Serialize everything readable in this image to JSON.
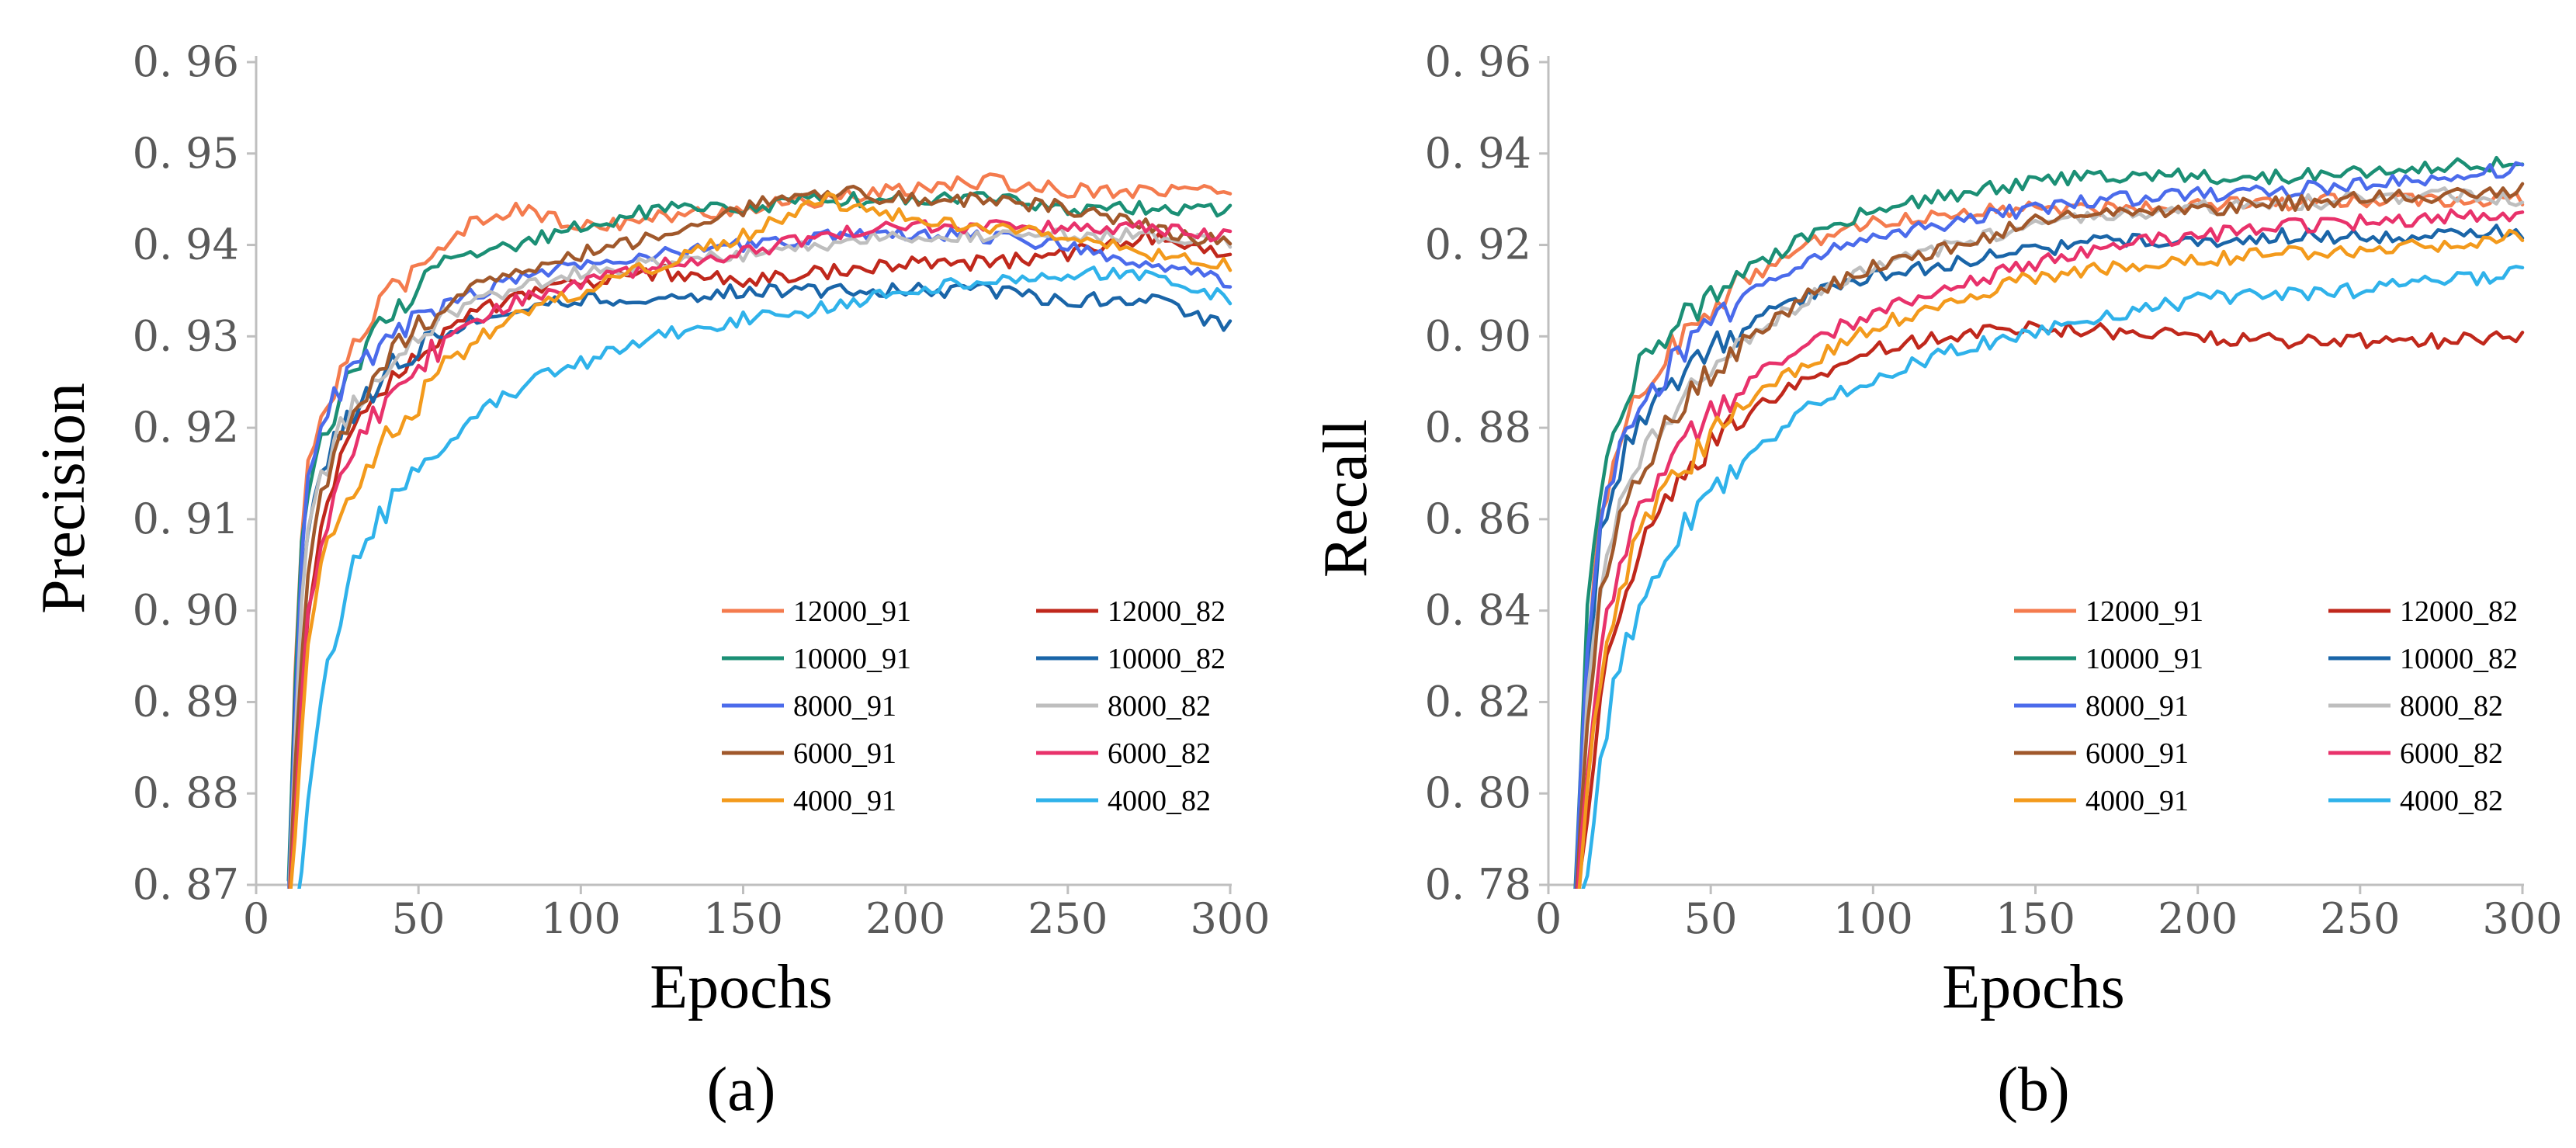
{
  "chart_data": [
    {
      "type": "line",
      "panel_label": "(a)",
      "title": "",
      "xlabel": "Epochs",
      "ylabel": "Precision",
      "xlim": [
        0,
        300
      ],
      "ylim": [
        0.87,
        0.96
      ],
      "xticks": [
        0,
        50,
        100,
        150,
        200,
        250,
        300
      ],
      "yticks": [
        0.87,
        0.88,
        0.89,
        0.9,
        0.91,
        0.92,
        0.93,
        0.94,
        0.95,
        0.96
      ],
      "xtick_labels": [
        "0",
        "50",
        "100",
        "150",
        "200",
        "250",
        "300"
      ],
      "ytick_labels": [
        "0. 87",
        "0. 88",
        "0. 89",
        "0. 90",
        "0. 91",
        "0. 92",
        "0. 93",
        "0. 94",
        "0. 95",
        "0. 96"
      ],
      "grid": false,
      "legend_position": "bottom-right",
      "x": [
        10,
        13,
        16,
        20,
        25,
        30,
        40,
        50,
        60,
        70,
        80,
        90,
        100,
        125,
        150,
        175,
        200,
        225,
        250,
        275,
        300
      ],
      "series": [
        {
          "name": "12000_91",
          "color": "#F47B4E",
          "values": [
            0.868,
            0.905,
            0.915,
            0.921,
            0.925,
            0.929,
            0.934,
            0.938,
            0.941,
            0.943,
            0.944,
            0.943,
            0.942,
            0.943,
            0.944,
            0.945,
            0.946,
            0.947,
            0.946,
            0.946,
            0.946
          ]
        },
        {
          "name": "12000_82",
          "color": "#C0281C",
          "values": [
            0.866,
            0.885,
            0.9,
            0.91,
            0.916,
            0.92,
            0.925,
            0.929,
            0.931,
            0.933,
            0.934,
            0.935,
            0.936,
            0.937,
            0.936,
            0.937,
            0.938,
            0.938,
            0.939,
            0.941,
            0.939
          ]
        },
        {
          "name": "10000_91",
          "color": "#1B8F75",
          "values": [
            0.87,
            0.903,
            0.912,
            0.918,
            0.923,
            0.927,
            0.932,
            0.935,
            0.938,
            0.939,
            0.94,
            0.941,
            0.942,
            0.944,
            0.944,
            0.945,
            0.945,
            0.945,
            0.944,
            0.944,
            0.944
          ]
        },
        {
          "name": "10000_82",
          "color": "#1A65A8",
          "values": [
            0.868,
            0.9,
            0.91,
            0.915,
            0.919,
            0.922,
            0.926,
            0.929,
            0.931,
            0.932,
            0.933,
            0.934,
            0.934,
            0.934,
            0.935,
            0.935,
            0.935,
            0.935,
            0.934,
            0.934,
            0.931
          ]
        },
        {
          "name": "8000_91",
          "color": "#4B6BEB",
          "values": [
            0.868,
            0.9,
            0.915,
            0.921,
            0.924,
            0.926,
            0.929,
            0.932,
            0.934,
            0.935,
            0.936,
            0.937,
            0.938,
            0.939,
            0.94,
            0.941,
            0.941,
            0.941,
            0.94,
            0.938,
            0.936
          ]
        },
        {
          "name": "8000_82",
          "color": "#BEBEBE",
          "values": [
            0.867,
            0.895,
            0.908,
            0.914,
            0.919,
            0.923,
            0.927,
            0.93,
            0.932,
            0.934,
            0.935,
            0.936,
            0.937,
            0.938,
            0.939,
            0.94,
            0.941,
            0.941,
            0.941,
            0.941,
            0.94
          ]
        },
        {
          "name": "6000_91",
          "color": "#A0582B",
          "values": [
            0.866,
            0.89,
            0.905,
            0.913,
            0.918,
            0.922,
            0.927,
            0.931,
            0.934,
            0.936,
            0.937,
            0.938,
            0.939,
            0.941,
            0.944,
            0.946,
            0.945,
            0.945,
            0.944,
            0.942,
            0.94
          ]
        },
        {
          "name": "6000_82",
          "color": "#E8326B",
          "values": [
            0.866,
            0.885,
            0.9,
            0.908,
            0.914,
            0.918,
            0.923,
            0.927,
            0.93,
            0.932,
            0.934,
            0.935,
            0.936,
            0.938,
            0.939,
            0.941,
            0.942,
            0.942,
            0.942,
            0.942,
            0.941
          ]
        },
        {
          "name": "4000_91",
          "color": "#F39A1C",
          "values": [
            0.866,
            0.88,
            0.895,
            0.904,
            0.91,
            0.914,
            0.919,
            0.923,
            0.927,
            0.93,
            0.932,
            0.934,
            0.935,
            0.938,
            0.941,
            0.945,
            0.943,
            0.942,
            0.941,
            0.939,
            0.938
          ]
        },
        {
          "name": "4000_82",
          "color": "#2FB2EA",
          "values": [
            0.86,
            0.868,
            0.88,
            0.89,
            0.898,
            0.905,
            0.911,
            0.915,
            0.919,
            0.922,
            0.924,
            0.926,
            0.927,
            0.93,
            0.932,
            0.933,
            0.935,
            0.936,
            0.937,
            0.937,
            0.934
          ]
        }
      ]
    },
    {
      "type": "line",
      "panel_label": "(b)",
      "title": "",
      "xlabel": "Epochs",
      "ylabel": "Recall",
      "xlim": [
        0,
        300
      ],
      "ylim": [
        0.78,
        0.96
      ],
      "xticks": [
        0,
        50,
        100,
        150,
        200,
        250,
        300
      ],
      "yticks": [
        0.78,
        0.8,
        0.82,
        0.84,
        0.86,
        0.88,
        0.9,
        0.92,
        0.94,
        0.96
      ],
      "xtick_labels": [
        "0",
        "50",
        "100",
        "150",
        "200",
        "250",
        "300"
      ],
      "ytick_labels": [
        "0. 78",
        "0. 80",
        "0. 82",
        "0. 84",
        "0. 86",
        "0. 88",
        "0. 90",
        "0. 92",
        "0. 94",
        "0. 96"
      ],
      "grid": false,
      "legend_position": "bottom-right",
      "x": [
        8,
        12,
        16,
        20,
        25,
        30,
        40,
        50,
        60,
        70,
        80,
        90,
        100,
        125,
        150,
        175,
        200,
        225,
        250,
        275,
        300
      ],
      "series": [
        {
          "name": "12000_91",
          "color": "#F47B4E",
          "values": [
            0.775,
            0.83,
            0.858,
            0.873,
            0.883,
            0.89,
            0.899,
            0.906,
            0.912,
            0.916,
            0.92,
            0.923,
            0.925,
            0.927,
            0.928,
            0.928,
            0.929,
            0.929,
            0.93,
            0.93,
            0.93
          ]
        },
        {
          "name": "12000_82",
          "color": "#C0281C",
          "values": [
            0.77,
            0.795,
            0.82,
            0.835,
            0.848,
            0.858,
            0.868,
            0.876,
            0.882,
            0.887,
            0.891,
            0.894,
            0.897,
            0.9,
            0.902,
            0.901,
            0.9,
            0.899,
            0.899,
            0.899,
            0.9
          ]
        },
        {
          "name": "10000_91",
          "color": "#1B8F75",
          "values": [
            0.778,
            0.84,
            0.866,
            0.88,
            0.889,
            0.895,
            0.903,
            0.909,
            0.914,
            0.918,
            0.922,
            0.925,
            0.928,
            0.931,
            0.934,
            0.935,
            0.935,
            0.935,
            0.936,
            0.937,
            0.938
          ]
        },
        {
          "name": "10000_82",
          "color": "#1A65A8",
          "values": [
            0.776,
            0.83,
            0.855,
            0.868,
            0.877,
            0.883,
            0.891,
            0.897,
            0.902,
            0.906,
            0.909,
            0.911,
            0.913,
            0.916,
            0.919,
            0.921,
            0.921,
            0.922,
            0.922,
            0.922,
            0.923
          ]
        },
        {
          "name": "8000_91",
          "color": "#4B6BEB",
          "values": [
            0.775,
            0.832,
            0.858,
            0.87,
            0.88,
            0.886,
            0.896,
            0.903,
            0.909,
            0.913,
            0.917,
            0.92,
            0.922,
            0.925,
            0.928,
            0.93,
            0.931,
            0.932,
            0.933,
            0.935,
            0.937
          ]
        },
        {
          "name": "8000_82",
          "color": "#BEBEBE",
          "values": [
            0.772,
            0.82,
            0.845,
            0.858,
            0.868,
            0.875,
            0.885,
            0.893,
            0.899,
            0.904,
            0.908,
            0.912,
            0.915,
            0.92,
            0.924,
            0.927,
            0.928,
            0.929,
            0.93,
            0.931,
            0.93
          ]
        },
        {
          "name": "6000_91",
          "color": "#A0582B",
          "values": [
            0.772,
            0.818,
            0.842,
            0.856,
            0.866,
            0.873,
            0.884,
            0.892,
            0.899,
            0.904,
            0.909,
            0.912,
            0.915,
            0.92,
            0.925,
            0.927,
            0.928,
            0.929,
            0.93,
            0.931,
            0.932
          ]
        },
        {
          "name": "6000_82",
          "color": "#E8326B",
          "values": [
            0.77,
            0.805,
            0.83,
            0.845,
            0.856,
            0.864,
            0.875,
            0.883,
            0.889,
            0.894,
            0.898,
            0.902,
            0.905,
            0.911,
            0.916,
            0.92,
            0.922,
            0.924,
            0.925,
            0.926,
            0.927
          ]
        },
        {
          "name": "4000_91",
          "color": "#F39A1C",
          "values": [
            0.77,
            0.8,
            0.825,
            0.84,
            0.851,
            0.859,
            0.87,
            0.878,
            0.885,
            0.89,
            0.894,
            0.898,
            0.902,
            0.908,
            0.913,
            0.915,
            0.917,
            0.918,
            0.919,
            0.92,
            0.922
          ]
        },
        {
          "name": "4000_82",
          "color": "#2FB2EA",
          "values": [
            0.77,
            0.785,
            0.805,
            0.822,
            0.835,
            0.845,
            0.857,
            0.866,
            0.873,
            0.879,
            0.884,
            0.888,
            0.891,
            0.897,
            0.901,
            0.905,
            0.908,
            0.909,
            0.91,
            0.912,
            0.914
          ]
        }
      ]
    }
  ]
}
